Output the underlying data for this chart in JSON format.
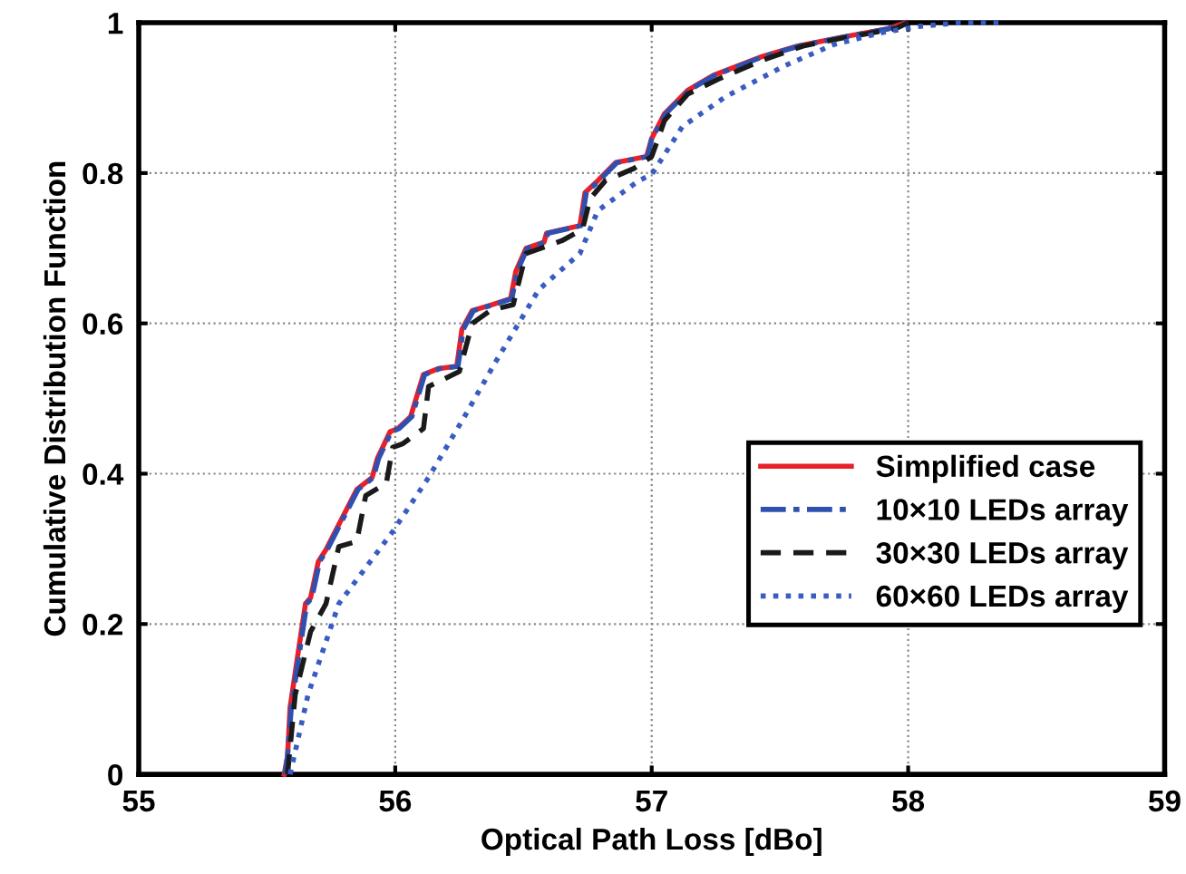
{
  "chart_data": {
    "type": "line",
    "xlabel": "Optical Path Loss [dBo]",
    "ylabel": "Cumulative Distribution Function",
    "xlim": [
      55,
      59
    ],
    "ylim": [
      0,
      1
    ],
    "xticks": [
      55,
      56,
      57,
      58,
      59
    ],
    "yticks": [
      0,
      0.2,
      0.4,
      0.6,
      0.8,
      1
    ],
    "grid": true,
    "legend": "right",
    "marker": "none",
    "series": [
      {
        "name": "Simplified case",
        "color": "#e8202a",
        "line_style": "solid",
        "x": [
          55.567,
          55.58,
          55.59,
          55.625,
          55.65,
          55.67,
          55.7,
          55.73,
          55.79,
          55.85,
          55.91,
          55.93,
          55.98,
          56.01,
          56.06,
          56.11,
          56.17,
          56.24,
          56.26,
          56.3,
          56.38,
          56.45,
          56.47,
          56.51,
          56.58,
          56.59,
          56.72,
          56.74,
          56.79,
          56.86,
          56.98,
          57.0,
          57.05,
          57.14,
          57.24,
          57.43,
          57.57,
          57.73,
          57.92,
          57.99
        ],
        "values": [
          0,
          0.024,
          0.089,
          0.17,
          0.227,
          0.235,
          0.283,
          0.299,
          0.339,
          0.379,
          0.395,
          0.42,
          0.456,
          0.46,
          0.476,
          0.532,
          0.54,
          0.543,
          0.592,
          0.617,
          0.625,
          0.633,
          0.669,
          0.7,
          0.708,
          0.72,
          0.73,
          0.774,
          0.79,
          0.814,
          0.822,
          0.846,
          0.879,
          0.91,
          0.93,
          0.955,
          0.969,
          0.98,
          0.992,
          1
        ]
      },
      {
        "name": "10×10 LEDs array",
        "color": "#3050b0",
        "line_style": "dashdot",
        "x": [
          55.57,
          55.58,
          55.595,
          55.63,
          55.655,
          55.675,
          55.705,
          55.735,
          55.795,
          55.855,
          55.915,
          55.935,
          55.985,
          56.015,
          56.065,
          56.115,
          56.175,
          56.245,
          56.265,
          56.305,
          56.385,
          56.455,
          56.475,
          56.515,
          56.585,
          56.595,
          56.725,
          56.745,
          56.795,
          56.865,
          56.985,
          57.0,
          57.055,
          57.145,
          57.245,
          57.435,
          57.575,
          57.735,
          57.925,
          58.0
        ],
        "values": [
          0,
          0.024,
          0.089,
          0.17,
          0.227,
          0.235,
          0.283,
          0.299,
          0.339,
          0.379,
          0.395,
          0.42,
          0.456,
          0.46,
          0.476,
          0.532,
          0.54,
          0.543,
          0.592,
          0.617,
          0.625,
          0.633,
          0.669,
          0.7,
          0.708,
          0.72,
          0.73,
          0.774,
          0.79,
          0.814,
          0.822,
          0.846,
          0.879,
          0.91,
          0.93,
          0.955,
          0.969,
          0.98,
          0.992,
          1
        ]
      },
      {
        "name": "30×30 LEDs array",
        "color": "#1a1a1a",
        "line_style": "dashed",
        "x": [
          55.58,
          55.61,
          55.67,
          55.73,
          55.78,
          55.85,
          55.885,
          55.965,
          55.99,
          56.03,
          56.11,
          56.13,
          56.25,
          56.3,
          56.37,
          56.46,
          56.51,
          56.65,
          56.73,
          56.76,
          56.82,
          56.93,
          57.0,
          57.05,
          57.14,
          57.26,
          57.43,
          57.59,
          57.75,
          57.95,
          58.0
        ],
        "values": [
          0,
          0.106,
          0.19,
          0.227,
          0.303,
          0.31,
          0.371,
          0.387,
          0.435,
          0.44,
          0.46,
          0.516,
          0.536,
          0.6,
          0.617,
          0.625,
          0.693,
          0.71,
          0.725,
          0.766,
          0.79,
          0.806,
          0.822,
          0.87,
          0.905,
          0.925,
          0.95,
          0.969,
          0.98,
          0.992,
          1
        ]
      },
      {
        "name": "60×60 LEDs array",
        "color": "#3a5cc0",
        "line_style": "dotted",
        "x": [
          55.59,
          55.66,
          55.78,
          55.99,
          56.13,
          56.27,
          56.39,
          56.56,
          56.72,
          56.79,
          56.95,
          57.0,
          57.12,
          57.29,
          57.52,
          57.71,
          57.9,
          58.04,
          58.2,
          58.38
        ],
        "values": [
          0,
          0.106,
          0.227,
          0.323,
          0.395,
          0.476,
          0.548,
          0.645,
          0.693,
          0.75,
          0.79,
          0.798,
          0.862,
          0.902,
          0.943,
          0.971,
          0.987,
          0.995,
          1,
          1
        ]
      }
    ]
  }
}
